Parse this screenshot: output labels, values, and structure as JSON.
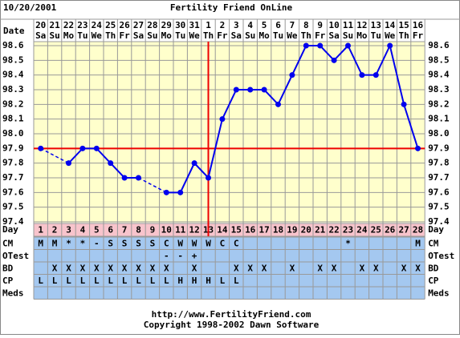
{
  "chart_data": {
    "type": "line",
    "title": "Fertility Friend OnLine",
    "chart_date": "10/20/2001",
    "date_label": "Date",
    "dates": [
      "20",
      "21",
      "22",
      "23",
      "24",
      "25",
      "26",
      "27",
      "28",
      "29",
      "30",
      "31",
      "1",
      "2",
      "3",
      "4",
      "5",
      "6",
      "7",
      "8",
      "9",
      "10",
      "11",
      "12",
      "13",
      "14",
      "15",
      "16"
    ],
    "weekdays": [
      "Sa",
      "Su",
      "Mo",
      "Tu",
      "We",
      "Th",
      "Fr",
      "Sa",
      "Su",
      "Mo",
      "Tu",
      "We",
      "Th",
      "Fr",
      "Sa",
      "Su",
      "Mo",
      "Tu",
      "We",
      "Th",
      "Fr",
      "Sa",
      "Su",
      "Mo",
      "Tu",
      "We",
      "Th",
      "Fr"
    ],
    "values": [
      97.9,
      null,
      97.8,
      97.9,
      97.9,
      97.8,
      97.7,
      97.7,
      null,
      97.6,
      97.6,
      97.8,
      97.7,
      98.1,
      98.3,
      98.3,
      98.3,
      98.2,
      98.4,
      98.6,
      98.6,
      98.5,
      98.6,
      98.4,
      98.4,
      98.6,
      98.2,
      97.9
    ],
    "color": "#0000ee",
    "ylim": [
      97.4,
      98.6
    ],
    "yticks": [
      97.4,
      97.5,
      97.6,
      97.7,
      97.8,
      97.9,
      {
        "value": 98,
        "label": "98.0"
      },
      98.1,
      98.2,
      98.3,
      98.4,
      98.5,
      98.6
    ],
    "grid": true,
    "coverline": 97.9,
    "ovulation_day": 13,
    "marker_line_color": "#ee0000",
    "day_label": "Day",
    "days": [
      1,
      2,
      3,
      4,
      5,
      6,
      7,
      8,
      9,
      10,
      11,
      12,
      13,
      14,
      15,
      16,
      17,
      18,
      19,
      20,
      21,
      22,
      23,
      24,
      25,
      26,
      27,
      28
    ],
    "day_row_color": "#f8c4cc",
    "rows": [
      {
        "label": "CM",
        "color": "#a4c8f0",
        "cells": [
          "M",
          "M",
          "*",
          "*",
          "-",
          "S",
          "S",
          "S",
          "S",
          "C",
          "W",
          "W",
          "W",
          "C",
          "C",
          null,
          null,
          null,
          null,
          null,
          null,
          null,
          "*",
          null,
          null,
          null,
          null,
          "M"
        ]
      },
      {
        "label": "OTest",
        "color": "#a4c8f0",
        "cells": [
          null,
          null,
          null,
          null,
          null,
          null,
          null,
          null,
          null,
          "-",
          "-",
          "+",
          null,
          null,
          null,
          null,
          null,
          null,
          null,
          null,
          null,
          null,
          null,
          null,
          null,
          null,
          null,
          null
        ]
      },
      {
        "label": "BD",
        "color": "#a4c8f0",
        "cells": [
          null,
          "X",
          "X",
          "X",
          "X",
          "X",
          "X",
          "X",
          "X",
          "X",
          null,
          "X",
          null,
          null,
          "X",
          "X",
          "X",
          null,
          "X",
          null,
          "X",
          "X",
          null,
          "X",
          "X",
          null,
          "X",
          "X"
        ]
      },
      {
        "label": "CP",
        "color": "#a4c8f0",
        "cells": [
          "L",
          "L",
          "L",
          "L",
          "L",
          "L",
          "L",
          "L",
          "L",
          "L",
          "H",
          "H",
          "H",
          "L",
          "L",
          null,
          null,
          null,
          null,
          null,
          null,
          null,
          null,
          null,
          null,
          null,
          null,
          null
        ]
      },
      {
        "label": "Meds",
        "color": "#a4c8f0",
        "cells": [
          null,
          null,
          null,
          null,
          null,
          null,
          null,
          null,
          null,
          null,
          null,
          null,
          null,
          null,
          null,
          null,
          null,
          null,
          null,
          null,
          null,
          null,
          null,
          null,
          null,
          null,
          null,
          null
        ]
      }
    ],
    "footer": [
      "http://www.FertilityFriend.com",
      "Copyright 1998-2002 Dawn Software"
    ]
  }
}
